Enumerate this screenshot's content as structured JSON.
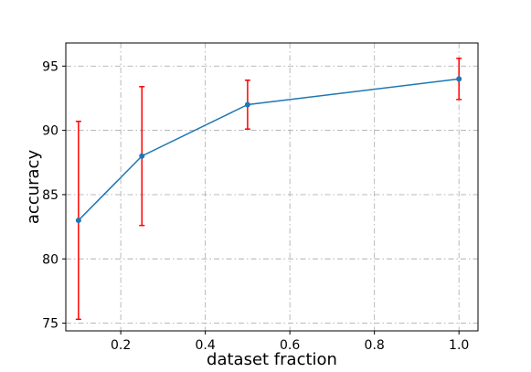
{
  "chart_data": {
    "type": "line",
    "xlabel": "dataset fraction",
    "ylabel": "accuracy",
    "xlim": [
      0.07,
      1.045
    ],
    "ylim": [
      74.4,
      96.8
    ],
    "xticks": [
      0.2,
      0.4,
      0.6,
      0.8,
      1.0
    ],
    "xtick_labels": [
      "0.2",
      "0.4",
      "0.6",
      "0.8",
      "1.0"
    ],
    "yticks": [
      75,
      80,
      85,
      90,
      95
    ],
    "ytick_labels": [
      "75",
      "80",
      "85",
      "90",
      "95"
    ],
    "grid": true,
    "series": [
      {
        "x": [
          0.1,
          0.25,
          0.5,
          1.0
        ],
        "y": [
          83.0,
          88.0,
          92.0,
          94.0
        ],
        "error_low": [
          75.3,
          82.6,
          90.1,
          92.4
        ],
        "error_high": [
          90.7,
          93.4,
          93.9,
          95.6
        ],
        "color": "#1f77b4",
        "error_color": "#ff0000"
      }
    ]
  }
}
